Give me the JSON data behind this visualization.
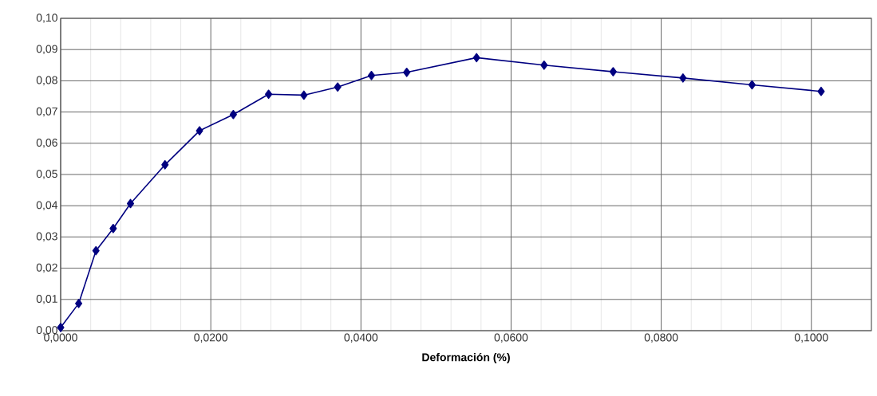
{
  "chart_data": {
    "type": "line",
    "xlabel": "Deformación (%)",
    "x": [
      0,
      0.0024,
      0.0047,
      0.007,
      0.0093,
      0.0139,
      0.0185,
      0.023,
      0.0277,
      0.0324,
      0.0369,
      0.0414,
      0.0461,
      0.0554,
      0.0644,
      0.0736,
      0.0829,
      0.0921,
      0.1013
    ],
    "values": [
      0.001,
      0.0087,
      0.0256,
      0.0327,
      0.0407,
      0.0531,
      0.064,
      0.0692,
      0.0757,
      0.0754,
      0.078,
      0.0817,
      0.0827,
      0.0874,
      0.085,
      0.0829,
      0.0809,
      0.0787,
      0.0766
    ],
    "color": "#000080",
    "marker": "diamond",
    "line_style": "solid",
    "grid": true,
    "xlim": [
      0,
      0.108
    ],
    "ylim": [
      0,
      0.1
    ],
    "xticks": [
      {
        "value": 0,
        "label": "0,0000"
      },
      {
        "value": 0.02,
        "label": "0,0200"
      },
      {
        "value": 0.04,
        "label": "0,0400"
      },
      {
        "value": 0.06,
        "label": "0,0600"
      },
      {
        "value": 0.08,
        "label": "0,0800"
      },
      {
        "value": 0.1,
        "label": "0,1000"
      }
    ],
    "yticks": [
      {
        "value": 0,
        "label": "0,00"
      },
      {
        "value": 0.01,
        "label": "0,01"
      },
      {
        "value": 0.02,
        "label": "0,02"
      },
      {
        "value": 0.03,
        "label": "0,03"
      },
      {
        "value": 0.04,
        "label": "0,04"
      },
      {
        "value": 0.05,
        "label": "0,05"
      },
      {
        "value": 0.06,
        "label": "0,06"
      },
      {
        "value": 0.07,
        "label": "0,07"
      },
      {
        "value": 0.08,
        "label": "0,08"
      },
      {
        "value": 0.09,
        "label": "0,09"
      },
      {
        "value": 0.1,
        "label": "0,10"
      }
    ]
  }
}
